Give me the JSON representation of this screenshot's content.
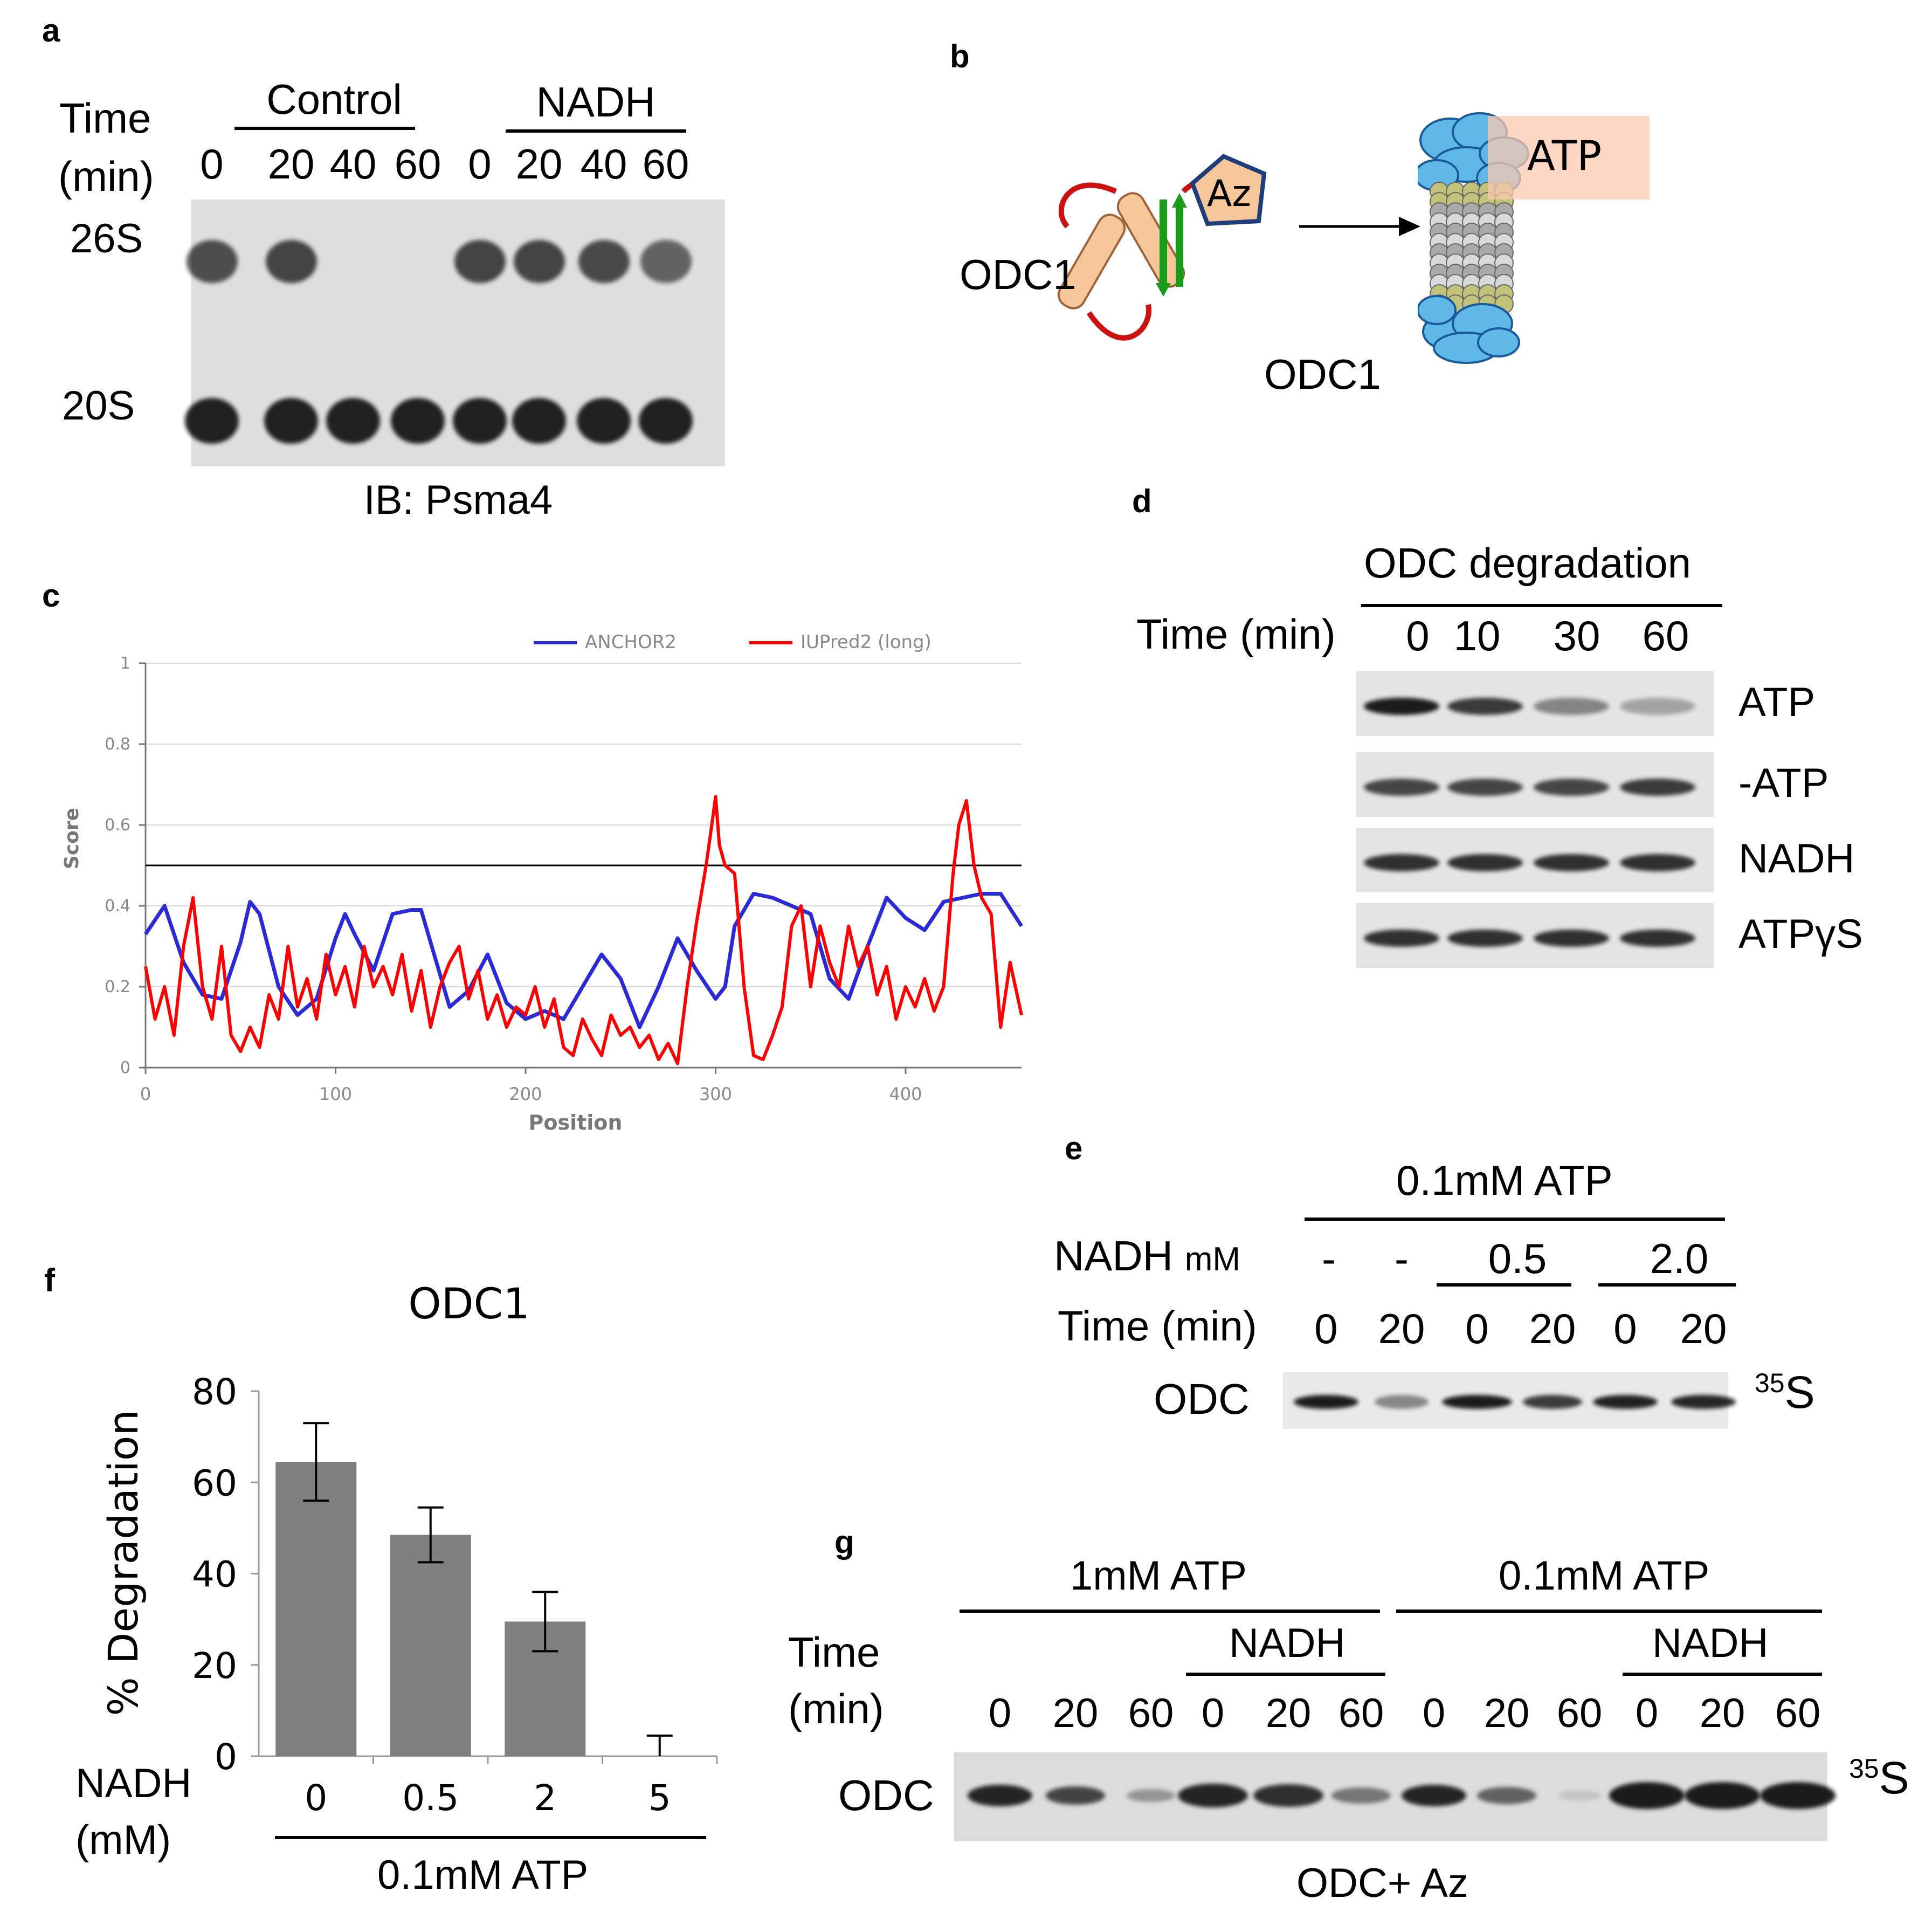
{
  "panels": {
    "a": {
      "letter": "a",
      "time_label": [
        "Time",
        "(min)"
      ],
      "group_control": "Control",
      "group_nadh": "NADH",
      "times": [
        "0",
        "20",
        "40",
        "60",
        "0",
        "20",
        "40",
        "60"
      ],
      "row_26s": "26S",
      "row_20s": "20S",
      "ib_label": "IB: Psma4"
    },
    "b": {
      "letter": "b",
      "az_label": "Az",
      "odc1_label_left": "ODC1",
      "odc1_label_right": "ODC1",
      "atp_label": "ATP"
    },
    "d": {
      "letter": "d",
      "title": "ODC degradation",
      "time_label": "Time (min)",
      "times": [
        "0",
        "10",
        "30",
        "60"
      ],
      "rows": [
        "ATP",
        "-ATP",
        "NADH",
        "ATPγS"
      ]
    },
    "e": {
      "letter": "e",
      "atp_label": "0.1mM ATP",
      "nadh_label": "NADH",
      "nadh_unit": "mM",
      "nadh_values": [
        "-",
        "-",
        "0.5",
        "2.0"
      ],
      "time_label": "Time (min)",
      "times": [
        "0",
        "20",
        "0",
        "20",
        "0",
        "20"
      ],
      "row_label": "ODC",
      "isotope_sup": "35",
      "isotope": "S"
    },
    "f": {
      "letter": "f",
      "nadh_label": [
        "NADH",
        "(mM)"
      ],
      "atp_label": "0.1mM ATP"
    },
    "g": {
      "letter": "g",
      "group1": "1mM ATP",
      "group2": "0.1mM ATP",
      "nadh1": "NADH",
      "nadh2": "NADH",
      "time_label": [
        "Time",
        "(min)"
      ],
      "times": [
        "0",
        "20",
        "60",
        "0",
        "20",
        "60",
        "0",
        "20",
        "60",
        "0",
        "20",
        "60"
      ],
      "row_label": "ODC",
      "isotope_sup": "35",
      "isotope": "S",
      "caption": "ODC+ Az"
    }
  },
  "chart_data": [
    {
      "id": "c",
      "type": "line",
      "legend": [
        "ANCHOR2",
        "IUPred2 (long)"
      ],
      "xlabel": "Position",
      "ylabel": "Score",
      "xlim": [
        0,
        461
      ],
      "ylim": [
        0,
        1
      ],
      "xticks": [
        0,
        100,
        200,
        300,
        400
      ],
      "yticks": [
        0,
        0.2,
        0.4,
        0.6,
        0.8,
        1
      ],
      "ytick_labels": [
        "0",
        "0.2",
        "0.4",
        "0.6",
        "0.8",
        "1"
      ],
      "threshold": 0.5,
      "colors": {
        "ANCHOR2": "#2a2ad6",
        "IUPred2 (long)": "#ff0000"
      },
      "series": [
        {
          "name": "ANCHOR2",
          "x": [
            0,
            10,
            20,
            30,
            40,
            50,
            55,
            60,
            70,
            80,
            90,
            100,
            105,
            110,
            120,
            130,
            140,
            145,
            150,
            160,
            170,
            180,
            190,
            200,
            210,
            220,
            230,
            240,
            250,
            260,
            270,
            280,
            290,
            300,
            305,
            310,
            320,
            330,
            340,
            350,
            360,
            370,
            380,
            390,
            400,
            410,
            420,
            430,
            440,
            450,
            461
          ],
          "values": [
            0.33,
            0.4,
            0.26,
            0.18,
            0.17,
            0.31,
            0.41,
            0.38,
            0.2,
            0.13,
            0.17,
            0.32,
            0.38,
            0.33,
            0.24,
            0.38,
            0.39,
            0.39,
            0.31,
            0.15,
            0.19,
            0.28,
            0.16,
            0.12,
            0.14,
            0.12,
            0.2,
            0.28,
            0.22,
            0.1,
            0.2,
            0.32,
            0.24,
            0.17,
            0.2,
            0.35,
            0.43,
            0.42,
            0.4,
            0.38,
            0.22,
            0.17,
            0.3,
            0.42,
            0.37,
            0.34,
            0.41,
            0.42,
            0.43,
            0.43,
            0.35
          ]
        },
        {
          "name": "IUPred2 (long)",
          "x": [
            0,
            5,
            10,
            15,
            20,
            25,
            30,
            35,
            40,
            45,
            50,
            55,
            60,
            65,
            70,
            75,
            80,
            85,
            90,
            95,
            100,
            105,
            110,
            115,
            120,
            125,
            130,
            135,
            140,
            145,
            150,
            155,
            160,
            165,
            170,
            175,
            180,
            185,
            190,
            195,
            200,
            205,
            210,
            215,
            220,
            225,
            230,
            235,
            240,
            245,
            250,
            255,
            260,
            265,
            270,
            275,
            280,
            285,
            290,
            295,
            298,
            300,
            302,
            305,
            310,
            315,
            320,
            325,
            330,
            335,
            340,
            345,
            350,
            355,
            360,
            365,
            370,
            375,
            380,
            385,
            390,
            395,
            400,
            405,
            410,
            415,
            420,
            425,
            428,
            432,
            436,
            440,
            445,
            450,
            455,
            461
          ],
          "values": [
            0.25,
            0.12,
            0.2,
            0.08,
            0.3,
            0.42,
            0.2,
            0.12,
            0.3,
            0.08,
            0.04,
            0.1,
            0.05,
            0.18,
            0.12,
            0.3,
            0.15,
            0.22,
            0.12,
            0.28,
            0.18,
            0.25,
            0.15,
            0.3,
            0.2,
            0.25,
            0.18,
            0.28,
            0.14,
            0.24,
            0.1,
            0.2,
            0.26,
            0.3,
            0.17,
            0.24,
            0.12,
            0.18,
            0.1,
            0.15,
            0.13,
            0.2,
            0.1,
            0.17,
            0.05,
            0.03,
            0.12,
            0.07,
            0.03,
            0.13,
            0.08,
            0.1,
            0.05,
            0.08,
            0.02,
            0.06,
            0.01,
            0.2,
            0.36,
            0.5,
            0.6,
            0.67,
            0.55,
            0.5,
            0.48,
            0.2,
            0.03,
            0.02,
            0.08,
            0.15,
            0.35,
            0.4,
            0.2,
            0.35,
            0.26,
            0.2,
            0.35,
            0.25,
            0.3,
            0.18,
            0.25,
            0.12,
            0.2,
            0.15,
            0.22,
            0.14,
            0.2,
            0.48,
            0.6,
            0.66,
            0.5,
            0.42,
            0.38,
            0.1,
            0.26,
            0.13
          ]
        }
      ]
    },
    {
      "id": "f",
      "type": "bar",
      "title": "ODC1",
      "ylabel": "% Degradation",
      "xlabel": "NADH (mM)",
      "categories": [
        "0",
        "0.5",
        "2",
        "5"
      ],
      "values": [
        64.5,
        48.5,
        29.5,
        0
      ],
      "errors": [
        8.5,
        6,
        6.5,
        4.5
      ],
      "ylim": [
        0,
        80
      ],
      "yticks": [
        0,
        20,
        40,
        60,
        80
      ],
      "bar_color": "#7f7f7f"
    }
  ]
}
